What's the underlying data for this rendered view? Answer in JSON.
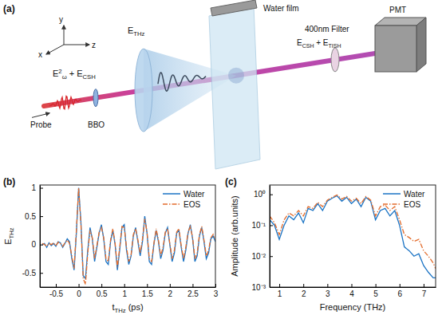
{
  "diagram": {
    "panel_label": "(a)",
    "axes": [
      "x",
      "y",
      "z"
    ],
    "water_film": "Water film",
    "detector": "PMT",
    "filter": "400nm Filter",
    "probe": "Probe",
    "crystal": "BBO",
    "thz_field": [
      {
        "text": "E",
        "sub": "THz"
      }
    ],
    "probe_field": [
      {
        "text": "E",
        "sup": "2",
        "sub": "ω"
      },
      {
        "text": " + E",
        "sub": "CSH"
      }
    ],
    "detected_field": [
      {
        "text": "E",
        "sub": "CSH"
      },
      {
        "text": " + E",
        "sub": "TISH"
      }
    ]
  },
  "chart_data": [
    {
      "type": "line",
      "title": "(b)",
      "xlabel": [
        {
          "text": "t",
          "sub": "THz"
        },
        {
          "text": " (ps)"
        }
      ],
      "ylabel": [
        {
          "text": "E",
          "sub": "THz"
        }
      ],
      "xlim": [
        -0.85,
        3
      ],
      "xticks": [
        -0.5,
        0,
        0.5,
        1,
        1.5,
        2,
        2.5,
        3
      ],
      "ylim": [
        -0.75,
        1.05
      ],
      "yticks": [
        -0.5,
        0,
        0.5,
        1
      ],
      "grid": false,
      "legend": "upper right",
      "x": [
        -0.8,
        -0.75,
        -0.7,
        -0.65,
        -0.6,
        -0.55,
        -0.5,
        -0.45,
        -0.4,
        -0.35,
        -0.3,
        -0.25,
        -0.2,
        -0.15,
        -0.1,
        -0.05,
        0,
        0.05,
        0.1,
        0.15,
        0.2,
        0.25,
        0.3,
        0.35,
        0.4,
        0.45,
        0.5,
        0.55,
        0.6,
        0.65,
        0.7,
        0.75,
        0.8,
        0.85,
        0.9,
        0.95,
        1,
        1.05,
        1.1,
        1.15,
        1.2,
        1.25,
        1.3,
        1.35,
        1.4,
        1.45,
        1.5,
        1.55,
        1.6,
        1.65,
        1.7,
        1.75,
        1.8,
        1.85,
        1.9,
        1.95,
        2,
        2.05,
        2.1,
        2.15,
        2.2,
        2.25,
        2.3,
        2.35,
        2.4,
        2.45,
        2.5,
        2.55,
        2.6,
        2.65,
        2.7,
        2.75,
        2.8,
        2.85,
        2.9,
        2.95,
        3
      ],
      "series": [
        {
          "name": "Water",
          "color": "#1a73c4",
          "line_style": "solid",
          "values": [
            0,
            0.02,
            -0.05,
            0.03,
            -0.02,
            0.02,
            -0.03,
            0.05,
            0.03,
            -0.05,
            0.02,
            0.1,
            0.05,
            -0.25,
            -0.45,
            0.2,
            1.0,
            0.4,
            -0.55,
            -0.6,
            -0.1,
            0.3,
            0.1,
            -0.3,
            -0.05,
            0.2,
            0.35,
            0.1,
            -0.3,
            -0.35,
            0.05,
            0.25,
            0.0,
            -0.45,
            -0.1,
            0.3,
            0.35,
            -0.1,
            -0.35,
            -0.2,
            0.15,
            0.3,
            0.05,
            -0.2,
            0.05,
            0.5,
            0.2,
            -0.3,
            -0.35,
            0.0,
            0.25,
            0.05,
            -0.25,
            -0.1,
            0.2,
            0.3,
            0.0,
            -0.3,
            -0.15,
            0.2,
            0.25,
            -0.05,
            -0.3,
            -0.1,
            0.2,
            0.35,
            0.1,
            -0.3,
            -0.2,
            0.15,
            0.3,
            0.05,
            -0.25,
            -0.15,
            0.1,
            0.15,
            0.05
          ]
        },
        {
          "name": "EOS",
          "color": "#e36c2c",
          "line_style": "dashdot",
          "values": [
            0.02,
            0,
            -0.03,
            0.02,
            0,
            0.03,
            -0.02,
            0.04,
            0.02,
            -0.03,
            0.03,
            0.08,
            0.02,
            -0.2,
            -0.42,
            0.25,
            1.0,
            0.35,
            -0.6,
            -0.7,
            -0.15,
            0.25,
            0.12,
            -0.25,
            -0.02,
            0.22,
            0.3,
            0.12,
            -0.25,
            -0.3,
            0.08,
            0.28,
            0.02,
            -0.4,
            -0.05,
            0.32,
            0.3,
            -0.05,
            -0.3,
            -0.18,
            0.18,
            0.28,
            0.08,
            -0.15,
            0.1,
            0.45,
            0.22,
            -0.25,
            -0.3,
            0.02,
            0.28,
            0.08,
            -0.2,
            -0.05,
            0.22,
            0.28,
            0.02,
            -0.25,
            -0.1,
            0.22,
            0.28,
            -0.02,
            -0.25,
            -0.05,
            0.22,
            0.32,
            0.12,
            -0.25,
            -0.15,
            0.18,
            0.32,
            0.08,
            -0.2,
            -0.1,
            0.12,
            0.18,
            0.08
          ]
        }
      ]
    },
    {
      "type": "line",
      "title": "(c)",
      "log": "y",
      "xlabel": [
        {
          "text": "Frequency (THz)"
        }
      ],
      "ylabel": [
        {
          "text": "Amplitude (arb.units)"
        }
      ],
      "xlim": [
        0.6,
        7.5
      ],
      "xticks": [
        1,
        2,
        3,
        4,
        5,
        6,
        7
      ],
      "ylim": [
        0.001,
        2
      ],
      "yticks": [
        {
          "value": 0.001,
          "label": "10⁻³"
        },
        {
          "value": 0.01,
          "label": "10⁻²"
        },
        {
          "value": 0.1,
          "label": "10⁻¹"
        },
        {
          "value": 1,
          "label": "10⁰"
        }
      ],
      "grid": false,
      "legend": "upper right",
      "x": [
        0.6,
        0.8,
        1,
        1.2,
        1.4,
        1.6,
        1.8,
        2,
        2.2,
        2.4,
        2.6,
        2.8,
        3,
        3.2,
        3.4,
        3.6,
        3.8,
        4,
        4.2,
        4.4,
        4.6,
        4.8,
        5,
        5.2,
        5.4,
        5.6,
        5.8,
        6,
        6.2,
        6.4,
        6.6,
        6.8,
        7,
        7.2,
        7.4,
        7.5
      ],
      "series": [
        {
          "name": "Water",
          "color": "#1a73c4",
          "line_style": "solid",
          "values": [
            0.15,
            0.1,
            0.035,
            0.1,
            0.2,
            0.15,
            0.25,
            0.12,
            0.35,
            0.3,
            0.5,
            0.3,
            0.6,
            0.75,
            0.9,
            0.6,
            0.8,
            0.5,
            0.7,
            0.4,
            0.8,
            0.6,
            0.15,
            0.3,
            0.35,
            0.2,
            0.3,
            0.1,
            0.02,
            0.015,
            0.01,
            0.012,
            0.005,
            0.003,
            0.002,
            0.002
          ]
        },
        {
          "name": "EOS",
          "color": "#e36c2c",
          "line_style": "dashdot",
          "values": [
            0.2,
            0.12,
            0.05,
            0.15,
            0.25,
            0.2,
            0.3,
            0.2,
            0.4,
            0.35,
            0.55,
            0.4,
            0.65,
            0.8,
            0.95,
            0.7,
            0.85,
            0.6,
            0.75,
            0.5,
            0.85,
            0.65,
            0.2,
            0.4,
            0.45,
            0.3,
            0.4,
            0.15,
            0.05,
            0.04,
            0.03,
            0.035,
            0.015,
            0.01,
            0.006,
            0.004
          ]
        }
      ]
    }
  ]
}
